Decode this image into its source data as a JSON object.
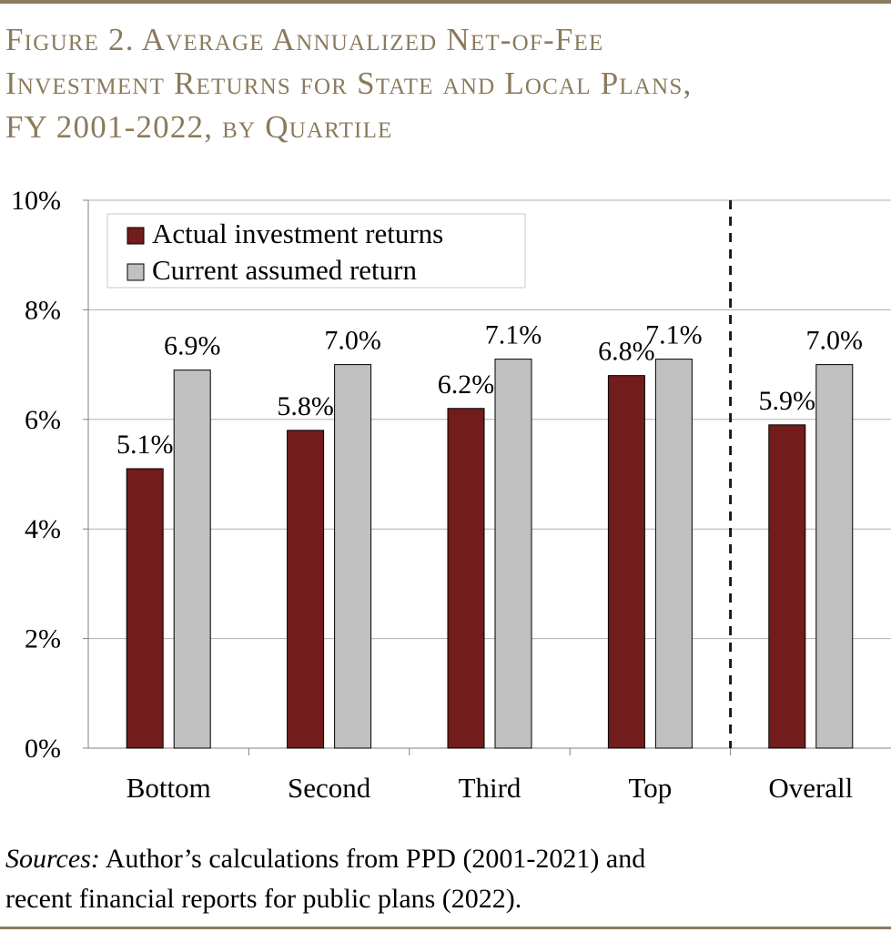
{
  "figure": {
    "title_line1": "Figure 2. Average Annualized Net-of-Fee",
    "title_line2": "Investment Returns for State and Local Plans,",
    "title_line3": "FY 2001-2022, by Quartile",
    "source_label": "Sources:",
    "source_line1": " Author’s calculations from PPD (2001-2021) and",
    "source_line2": "recent financial reports for public plans (2022)."
  },
  "colors": {
    "accent": "#8b7a5c",
    "actual": "#721c1c",
    "assumed": "#c0c0c0",
    "grid": "#b0b0b0"
  },
  "chart_data": {
    "type": "bar",
    "categories": [
      "Bottom",
      "Second",
      "Third",
      "Top",
      "Overall"
    ],
    "series": [
      {
        "name": "Actual investment returns",
        "values": [
          5.1,
          5.8,
          6.2,
          6.8,
          5.9
        ],
        "labels": [
          "5.1%",
          "5.8%",
          "6.2%",
          "6.8%",
          "5.9%"
        ]
      },
      {
        "name": "Current assumed return",
        "values": [
          6.9,
          7.0,
          7.1,
          7.1,
          7.0
        ],
        "labels": [
          "6.9%",
          "7.0%",
          "7.1%",
          "7.1%",
          "7.0%"
        ]
      }
    ],
    "yticks": [
      0,
      2,
      4,
      6,
      8,
      10
    ],
    "ytick_labels": [
      "0%",
      "2%",
      "4%",
      "6%",
      "8%",
      "10%"
    ],
    "ylim": [
      0,
      10
    ],
    "grid": true,
    "legend_position": "top-left",
    "divider": "dashed vertical line between Top and Overall"
  }
}
